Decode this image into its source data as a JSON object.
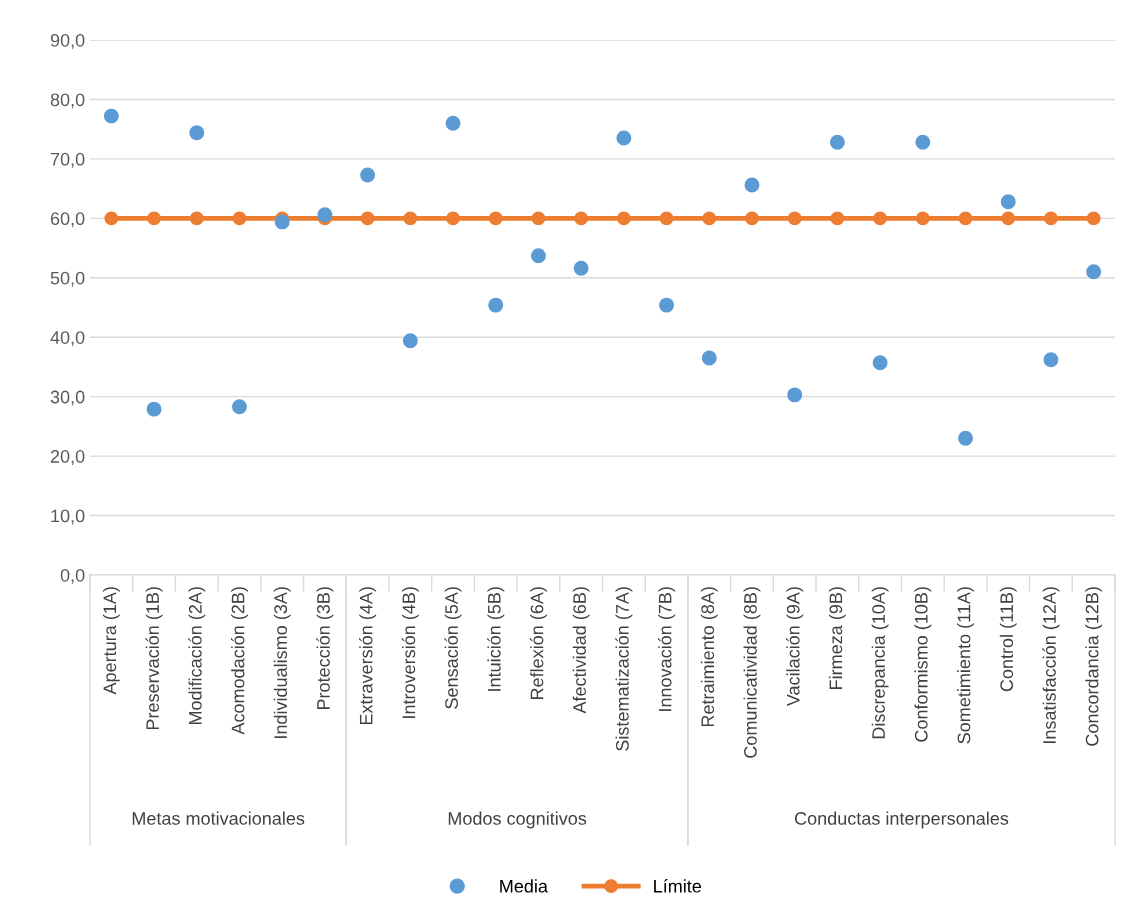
{
  "chart_data": {
    "type": "scatter",
    "categories": [
      "Apertura (1A)",
      "Preservación (1B)",
      "Modificación (2A)",
      "Acomodación (2B)",
      "Individualismo (3A)",
      "Protección (3B)",
      "Extraversión (4A)",
      "Introversión (4B)",
      "Sensación (5A)",
      "Intuición (5B)",
      "Reflexión (6A)",
      "Afectividad (6B)",
      "Sistematización (7A)",
      "Innovación (7B)",
      "Retraimiento (8A)",
      "Comunicatividad (8B)",
      "Vacilación (9A)",
      "Firmeza (9B)",
      "Discrepancia (10A)",
      "Conformismo (10B)",
      "Sometimiento (11A)",
      "Control (11B)",
      "Insatisfacción (12A)",
      "Concordancia (12B)"
    ],
    "series": [
      {
        "name": "Media",
        "color": "#5b9bd5",
        "values": [
          77.2,
          27.9,
          74.4,
          28.3,
          59.4,
          60.6,
          67.3,
          39.4,
          76.0,
          45.4,
          53.7,
          51.6,
          73.5,
          45.4,
          36.5,
          65.6,
          30.3,
          72.8,
          35.7,
          72.8,
          23.0,
          62.8,
          36.2,
          51.0
        ]
      },
      {
        "name": "Límite",
        "type": "line",
        "color": "#ed7d31",
        "values": [
          60,
          60,
          60,
          60,
          60,
          60,
          60,
          60,
          60,
          60,
          60,
          60,
          60,
          60,
          60,
          60,
          60,
          60,
          60,
          60,
          60,
          60,
          60,
          60
        ]
      }
    ],
    "annotations": [
      "Metas motivacionales",
      "Modos cognitivos",
      "Conductas interpersonales"
    ],
    "ylim": [
      0,
      90
    ],
    "yticks": [
      {
        "value": 0,
        "label": "0,0"
      },
      {
        "value": 10,
        "label": "10,0"
      },
      {
        "value": 20,
        "label": "20,0"
      },
      {
        "value": 30,
        "label": "30,0"
      },
      {
        "value": 40,
        "label": "40,0"
      },
      {
        "value": 50,
        "label": "50,0"
      },
      {
        "value": 60,
        "label": "60,0"
      },
      {
        "value": 70,
        "label": "70,0"
      },
      {
        "value": 80,
        "label": "80,0"
      },
      {
        "value": 90,
        "label": "90,0"
      }
    ],
    "grid": "y",
    "legend": "bottom",
    "marker": "circle",
    "line_style": "solid"
  }
}
